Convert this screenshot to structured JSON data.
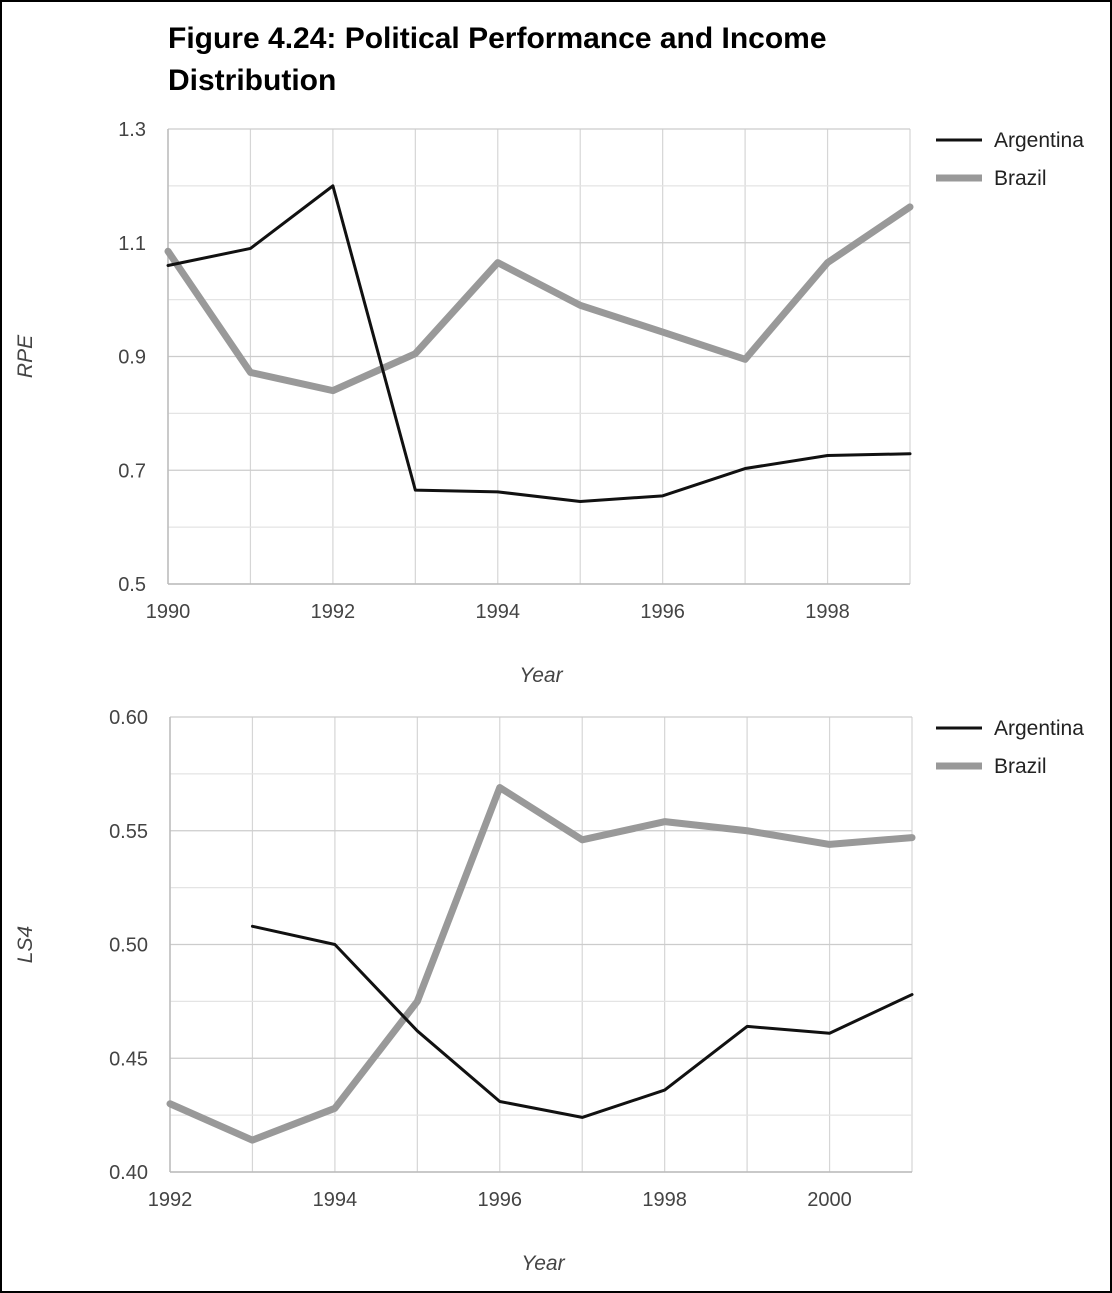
{
  "title_line1": "Figure 4.24: Political Performance and Income",
  "title_line2": "Distribution",
  "chart_data": [
    {
      "type": "line",
      "xlabel": "Year",
      "ylabel": "RPE",
      "xlim": [
        1990,
        1999
      ],
      "ylim": [
        0.5,
        1.3
      ],
      "x_ticks": [
        "1990",
        "1992",
        "1994",
        "1996",
        "1998"
      ],
      "y_ticks": [
        "1.3",
        "1.1",
        "0.9",
        "0.7",
        "0.5"
      ],
      "grid": true,
      "legend": "top-right",
      "x": [
        1990,
        1991,
        1992,
        1993,
        1994,
        1995,
        1996,
        1997,
        1998,
        1999
      ],
      "series": [
        {
          "name": "Argentina",
          "color": "#111111",
          "values": [
            1.06,
            1.09,
            1.2,
            0.665,
            0.662,
            0.645,
            0.655,
            0.703,
            0.726,
            0.729
          ]
        },
        {
          "name": "Brazil",
          "color": "#999999",
          "values": [
            1.085,
            0.872,
            0.84,
            0.905,
            1.065,
            0.99,
            0.943,
            0.895,
            1.065,
            1.163
          ]
        }
      ]
    },
    {
      "type": "line",
      "xlabel": "Year",
      "ylabel": "LS4",
      "xlim": [
        1992,
        2001
      ],
      "ylim": [
        0.4,
        0.6
      ],
      "x_ticks": [
        "1992",
        "1994",
        "1996",
        "1998",
        "2000"
      ],
      "y_ticks": [
        "0.60",
        "0.55",
        "0.50",
        "0.45",
        "0.40"
      ],
      "grid": true,
      "legend": "top-right",
      "x": [
        1992,
        1993,
        1994,
        1995,
        1996,
        1997,
        1998,
        1999,
        2000,
        2001
      ],
      "series": [
        {
          "name": "Argentina",
          "color": "#111111",
          "values": [
            null,
            0.508,
            0.5,
            0.462,
            0.431,
            0.424,
            0.436,
            0.464,
            0.461,
            0.478
          ]
        },
        {
          "name": "Brazil",
          "color": "#999999",
          "values": [
            0.43,
            0.414,
            0.428,
            0.475,
            0.569,
            0.546,
            0.554,
            0.55,
            0.544,
            0.547
          ]
        }
      ]
    }
  ]
}
